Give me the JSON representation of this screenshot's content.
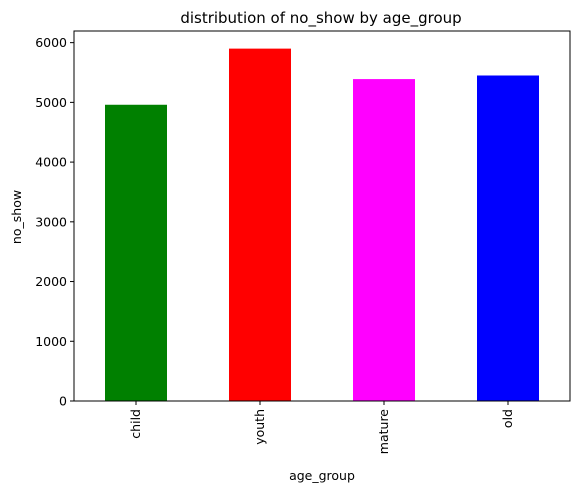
{
  "chart_data": {
    "type": "bar",
    "title": "distribution of no_show by age_group",
    "xlabel": "age_group",
    "ylabel": "no_show",
    "categories": [
      "child",
      "youth",
      "mature",
      "old"
    ],
    "values": [
      4960,
      5900,
      5390,
      5450
    ],
    "colors": [
      "#008000",
      "#ff0000",
      "#ff00ff",
      "#0000ff"
    ],
    "ylim": [
      0,
      6195
    ],
    "yticks": [
      0,
      1000,
      2000,
      3000,
      4000,
      5000,
      6000
    ],
    "grid": false,
    "legend": "none",
    "xtick_rotation": 90
  }
}
